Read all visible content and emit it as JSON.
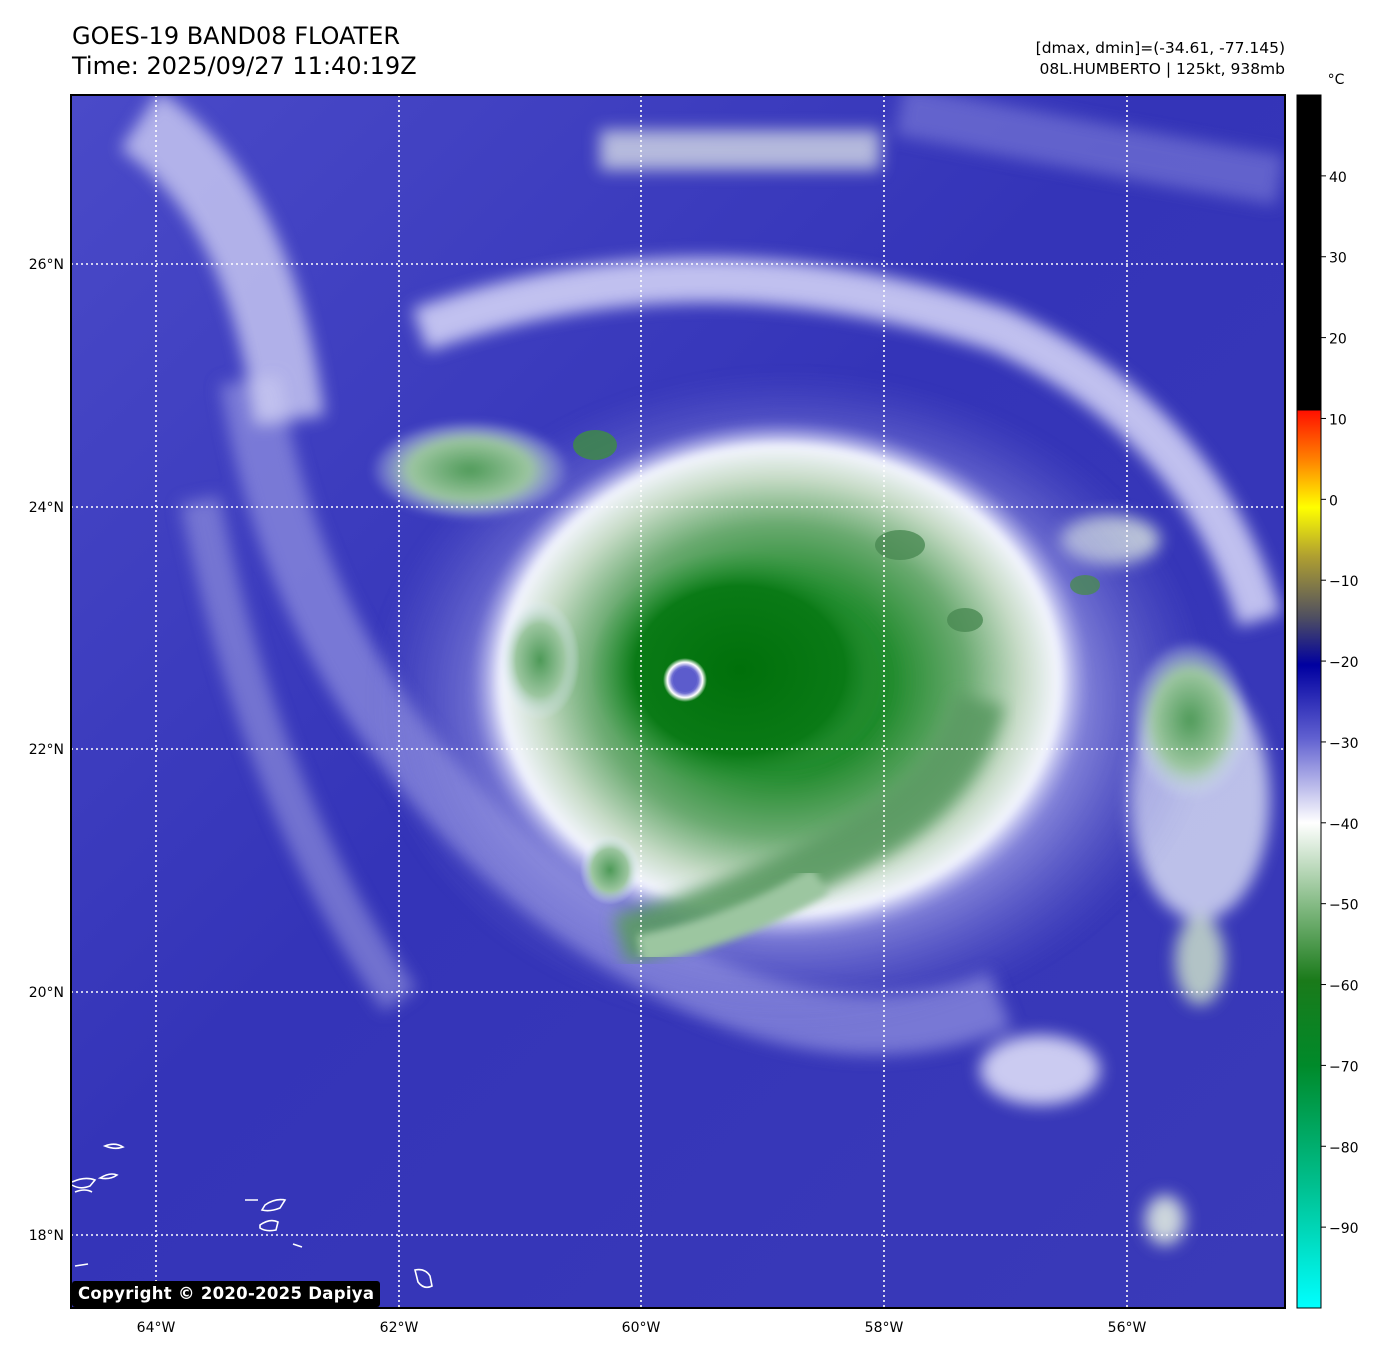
{
  "header": {
    "title_line1": "GOES-19 BAND08 FLOATER",
    "title_line2": "Time: 2025/09/27 11:40:19Z",
    "range_text": "[dmax, dmin]=(-34.61, -77.145)",
    "storm_text": "08L.HUMBERTO | 125kt, 938mb"
  },
  "map": {
    "lon_ticks": [
      "64°W",
      "62°W",
      "60°W",
      "58°W",
      "56°W"
    ],
    "lat_ticks": [
      "26°N",
      "24°N",
      "22°N",
      "20°N",
      "18°N"
    ],
    "gridlines": "dotted-white",
    "eye_color": "#5c5ccc"
  },
  "colorbar": {
    "unit": "°C",
    "ticks": [
      "40",
      "30",
      "20",
      "10",
      "0",
      "−10",
      "−20",
      "−30",
      "−40",
      "−50",
      "−60",
      "−70",
      "−80",
      "−90"
    ],
    "tick_values": [
      40,
      30,
      20,
      10,
      0,
      -10,
      -20,
      -30,
      -40,
      -50,
      -60,
      -70,
      -80,
      -90
    ],
    "range": [
      -100,
      50
    ],
    "colors": [
      "#00ffff",
      "#00a060",
      "#007000",
      "#ffffff",
      "#2020b0",
      "#ffff00",
      "#ff0000",
      "#000000"
    ]
  },
  "copyright": "Copyright © 2020-2025 Dapiya"
}
